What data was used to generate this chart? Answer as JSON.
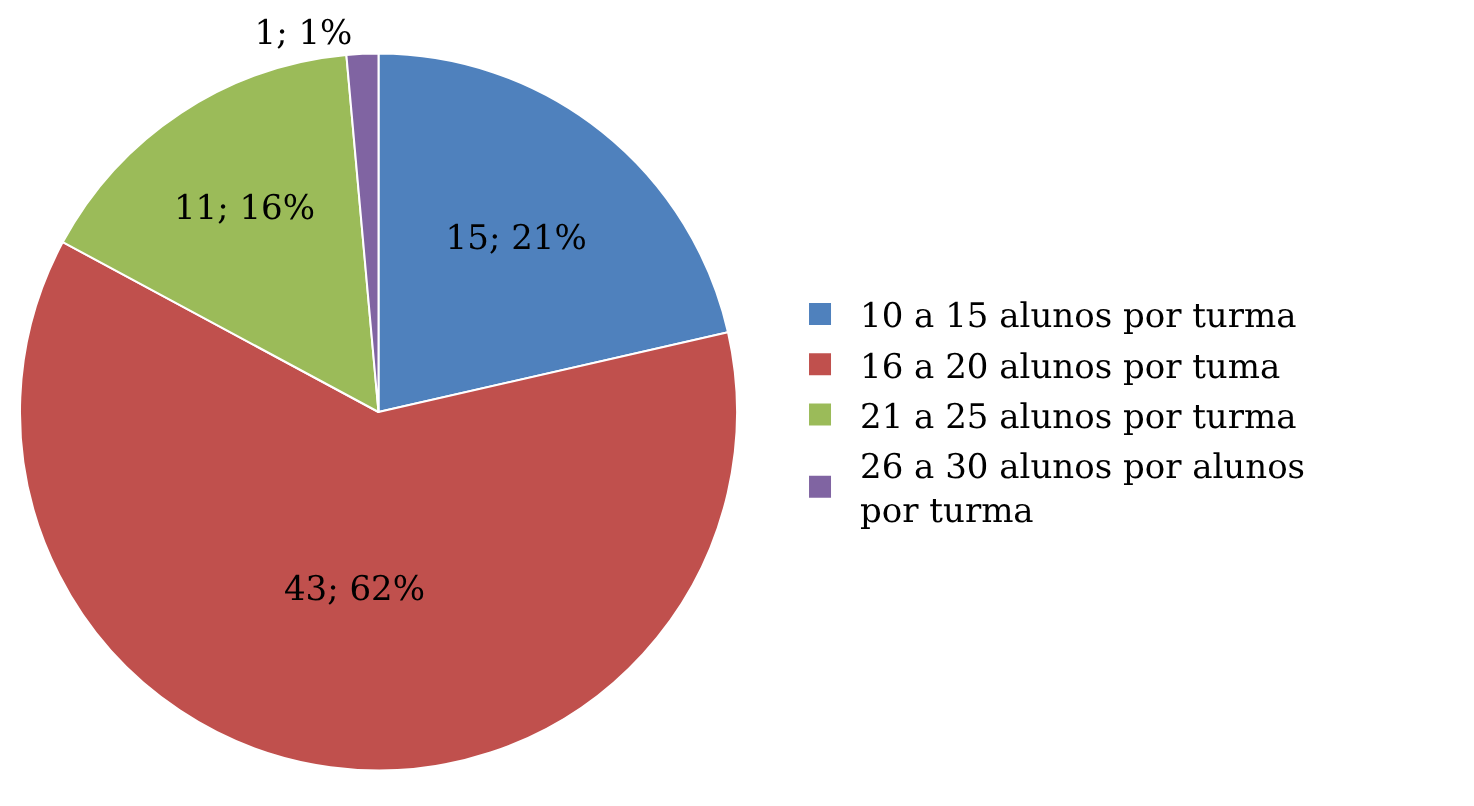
{
  "chart_data": {
    "type": "pie",
    "categories": [
      "10 a 15 alunos por turma",
      "16 a 20 alunos por tuma",
      "21 a 25 alunos por turma",
      "26 a 30 alunos por alunos por turma"
    ],
    "values": [
      15,
      43,
      11,
      1
    ],
    "colors": [
      "#4f81bd",
      "#c0504d",
      "#9bbb59",
      "#8064a2"
    ],
    "value_labels": [
      "15; 21%",
      "43; 62%",
      "11; 16%",
      "1; 1%"
    ],
    "legend": "right"
  }
}
